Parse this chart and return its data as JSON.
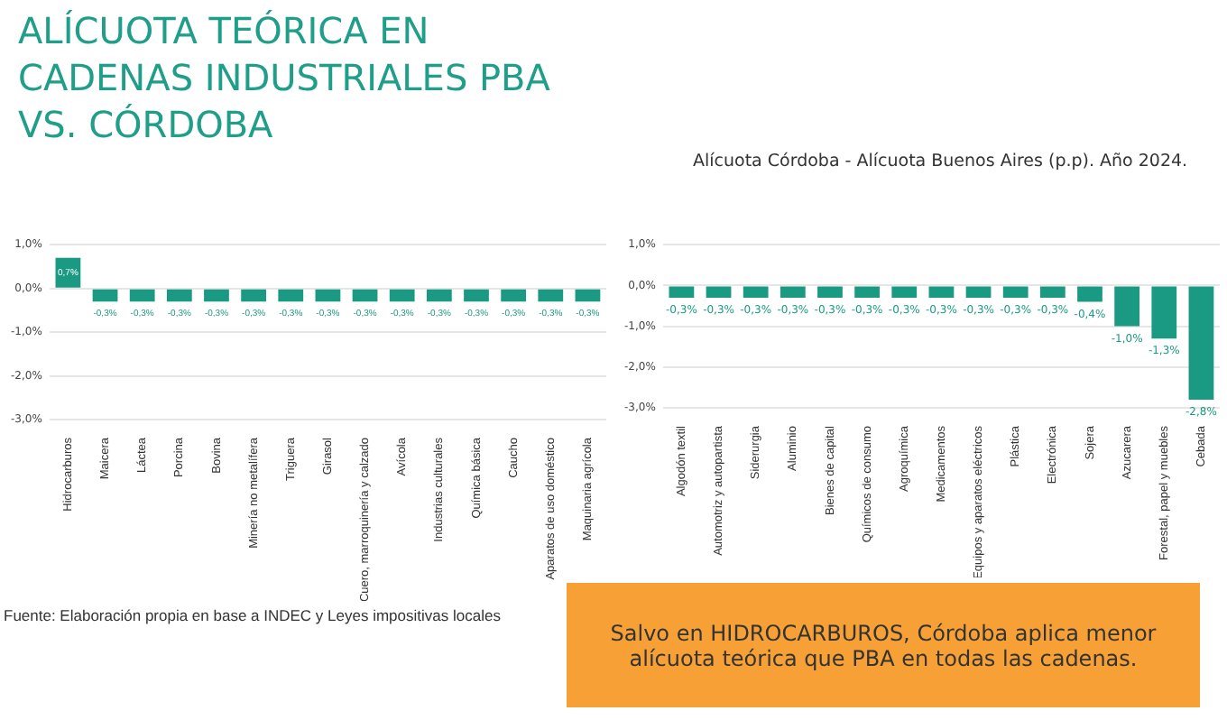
{
  "chart_data": [
    {
      "type": "bar",
      "title": "ALÍCUOTA TEÓRICA EN\nCADENAS INDUSTRIALES PBA\nVS. CÓRDOBA",
      "categories": [
        "Hidrocarburos",
        "Maicera",
        "Láctea",
        "Porcina",
        "Bovina",
        "Minería no metalífera",
        "Triguera",
        "Girasol",
        "Cuero, marroquinería y calzado",
        "Avícola",
        "Industrias culturales",
        "Química básica",
        "Caucho",
        "Aparatos de uso doméstico",
        "Maquinaria agrícola"
      ],
      "values": [
        0.7,
        -0.3,
        -0.3,
        -0.3,
        -0.3,
        -0.3,
        -0.3,
        -0.3,
        -0.3,
        -0.3,
        -0.3,
        -0.3,
        -0.3,
        -0.3,
        -0.3
      ],
      "value_labels": [
        "0,7%",
        "-0,3%",
        "-0,3%",
        "-0,3%",
        "-0,3%",
        "-0,3%",
        "-0,3%",
        "-0,3%",
        "-0,3%",
        "-0,3%",
        "-0,3%",
        "-0,3%",
        "-0,3%",
        "-0,3%",
        "-0,3%"
      ],
      "color": "#1b9a83",
      "ylim": [
        -3,
        1
      ],
      "yticks": [
        {
          "value": -3,
          "label": "-3,0%"
        },
        {
          "value": -2,
          "label": "-2,0%"
        },
        {
          "value": -1,
          "label": "-1,0%"
        },
        {
          "value": 0,
          "label": "0,0%"
        },
        {
          "value": 1,
          "label": "1,0%"
        }
      ],
      "grid": "y",
      "legend": false,
      "annotations": [
        "Fuente: Elaboración propia en base a INDEC y Leyes impositivas locales"
      ]
    },
    {
      "type": "bar",
      "subtitle": "Alícuota Córdoba - Alícuota Buenos Aires (p.p). Año 2024.",
      "categories": [
        "Algodón textil",
        "Automotriz y autopartista",
        "Siderurgia",
        "Aluminio",
        "Bienes de capital",
        "Químicos de consumo",
        "Agroquímica",
        "Medicamentos",
        "Equipos y aparatos eléctricos",
        "Plástica",
        "Electrónica",
        "Sojera",
        "Azucarera",
        "Forestal, papel y muebles",
        "Cebada"
      ],
      "values": [
        -0.3,
        -0.3,
        -0.3,
        -0.3,
        -0.3,
        -0.3,
        -0.3,
        -0.3,
        -0.3,
        -0.3,
        -0.3,
        -0.4,
        -1.0,
        -1.3,
        -2.8
      ],
      "value_labels": [
        "-0,3%",
        "-0,3%",
        "-0,3%",
        "-0,3%",
        "-0,3%",
        "-0,3%",
        "-0,3%",
        "-0,3%",
        "-0,3%",
        "-0,3%",
        "-0,3%",
        "-0,4%",
        "-1,0%",
        "-1,3%",
        "-2,8%"
      ],
      "color": "#1b9a83",
      "ylim": [
        -3,
        1
      ],
      "yticks": [
        {
          "value": -3,
          "label": "-3,0%"
        },
        {
          "value": -2,
          "label": "-2,0%"
        },
        {
          "value": -1,
          "label": "-1,0%"
        },
        {
          "value": 0,
          "label": "0,0%"
        },
        {
          "value": 1,
          "label": "1,0%"
        }
      ],
      "grid": "y",
      "legend": false,
      "annotations": [
        "Salvo en HIDROCARBUROS, Córdoba aplica menor alícuota teórica que PBA en todas las cadenas."
      ]
    }
  ]
}
